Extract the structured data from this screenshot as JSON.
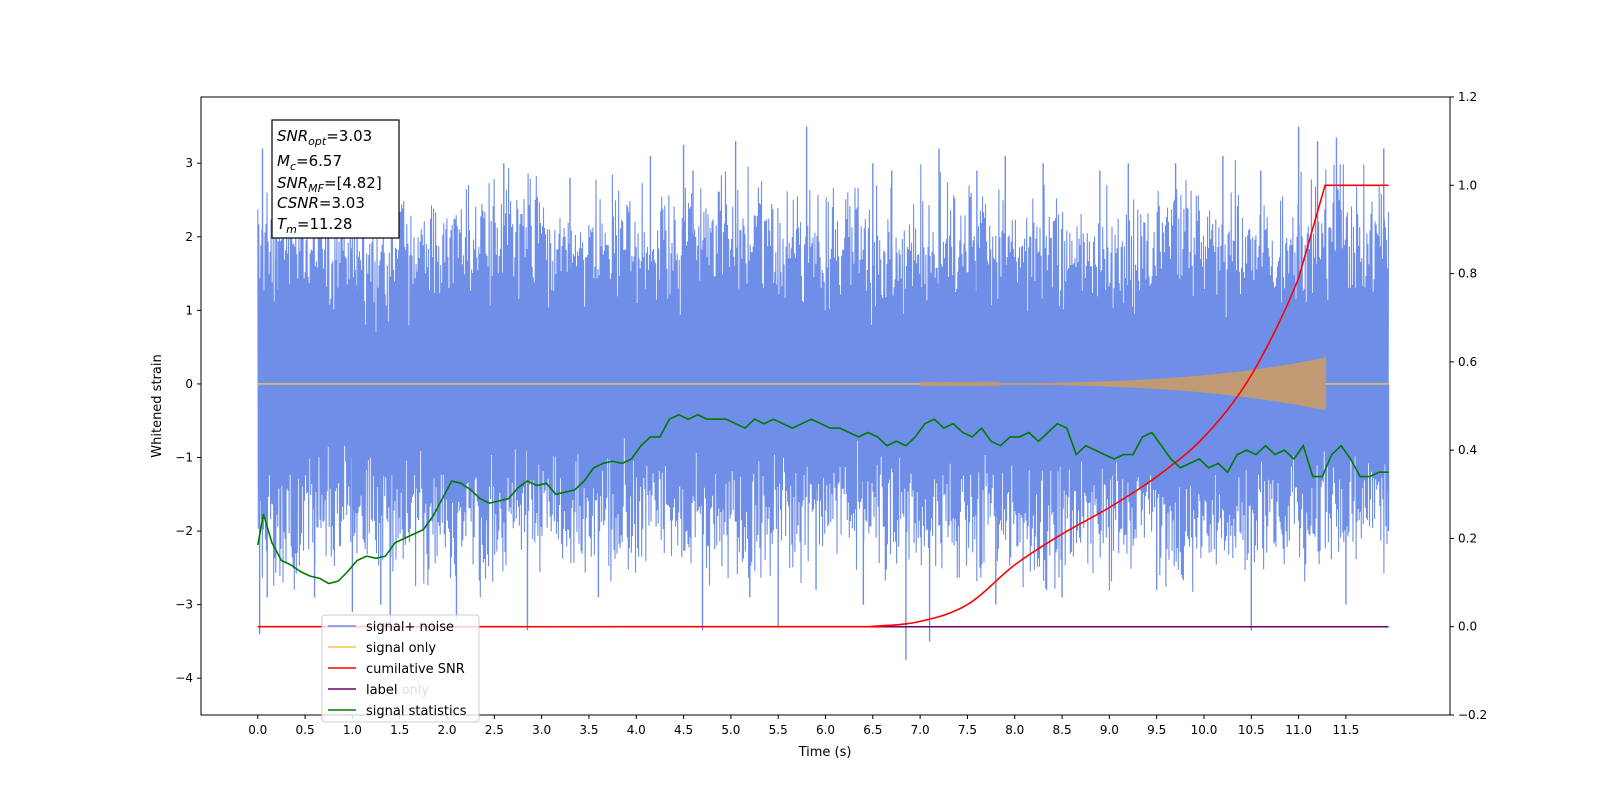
{
  "chart_data": {
    "type": "line",
    "xlabel": "Time (s)",
    "ylabel": "Whitened strain",
    "xlim": [
      -0.6,
      12.6
    ],
    "ylim": [
      -4.5,
      3.9
    ],
    "y2lim": [
      -0.2,
      1.2
    ],
    "xticks": [
      "0.0",
      "0.5",
      "1.0",
      "1.5",
      "2.0",
      "2.5",
      "3.0",
      "3.5",
      "4.0",
      "4.5",
      "5.0",
      "5.5",
      "6.0",
      "6.5",
      "7.0",
      "7.5",
      "8.0",
      "8.5",
      "9.0",
      "9.5",
      "10.0",
      "10.5",
      "11.0",
      "11.5"
    ],
    "yticks": [
      "−4",
      "−3",
      "−2",
      "−1",
      "0",
      "1",
      "2",
      "3"
    ],
    "y2ticks": [
      "−0.2",
      "0.0",
      "0.2",
      "0.4",
      "0.6",
      "0.8",
      "1.0",
      "1.2"
    ],
    "annotation": {
      "snr_opt": "=3.03",
      "mc": "=6.57",
      "snr_mf": "=[4.82]",
      "csnr": "=3.03",
      "tm": "=11.28"
    },
    "legend": [
      "signal+ noise",
      "signal only",
      "cumilative SNR",
      "label",
      "signal statistics"
    ],
    "ghost_legend_text": "label only",
    "colors": {
      "signal_noise": "#6f8ee8",
      "signal_only": "#ffc04d",
      "signal_envelope": "#c09a72",
      "cumulative_snr": "#ff0000",
      "label": "#6b006b",
      "signal_statistics": "#007a00"
    },
    "series": [
      {
        "name": "signal+ noise",
        "axis": "left",
        "envelope_low": [
          -2.6,
          -2.2,
          -2.3,
          -2.4,
          -2.5,
          -2.3,
          -2.2,
          -2.4,
          -2.3,
          -2.5,
          -2.4,
          -2.3,
          -2.2,
          -2.4,
          -2.3,
          -2.5,
          -2.6,
          -2.4,
          -2.3,
          -2.5,
          -2.4,
          -2.3,
          -2.4,
          -2.2
        ],
        "envelope_high": [
          2.5,
          2.3,
          2.2,
          2.4,
          2.5,
          2.6,
          2.3,
          2.4,
          2.5,
          2.7,
          2.6,
          2.4,
          2.5,
          2.3,
          2.6,
          2.5,
          2.4,
          2.3,
          2.4,
          2.6,
          2.5,
          2.4,
          2.7,
          2.6
        ],
        "spikes": [
          [
            0.02,
            -3.4
          ],
          [
            0.05,
            3.2
          ],
          [
            0.1,
            -2.9
          ],
          [
            0.2,
            2.3
          ],
          [
            0.6,
            -2.9
          ],
          [
            1.0,
            -3.1
          ],
          [
            1.05,
            2.8
          ],
          [
            1.3,
            -3.0
          ],
          [
            1.4,
            -3.3
          ],
          [
            2.1,
            -3.2
          ],
          [
            2.6,
            3.0
          ],
          [
            2.85,
            -3.35
          ],
          [
            3.3,
            2.8
          ],
          [
            3.6,
            -2.9
          ],
          [
            4.15,
            3.1
          ],
          [
            4.5,
            3.25
          ],
          [
            4.6,
            2.9
          ],
          [
            4.7,
            -3.35
          ],
          [
            5.05,
            3.3
          ],
          [
            5.2,
            -2.9
          ],
          [
            5.5,
            -3.3
          ],
          [
            5.8,
            3.5
          ],
          [
            5.9,
            -2.8
          ],
          [
            6.4,
            -3.0
          ],
          [
            6.5,
            3.0
          ],
          [
            6.7,
            2.9
          ],
          [
            6.85,
            -3.75
          ],
          [
            7.1,
            -3.5
          ],
          [
            7.2,
            3.2
          ],
          [
            7.6,
            2.9
          ],
          [
            7.8,
            -3.0
          ],
          [
            7.9,
            3.1
          ],
          [
            8.3,
            3.0
          ],
          [
            8.5,
            -2.9
          ],
          [
            8.9,
            2.9
          ],
          [
            9.2,
            3.0
          ],
          [
            9.5,
            -2.8
          ],
          [
            9.7,
            3.0
          ],
          [
            10.2,
            3.1
          ],
          [
            10.5,
            -3.35
          ],
          [
            10.6,
            2.9
          ],
          [
            11.0,
            3.5
          ],
          [
            11.2,
            3.3
          ],
          [
            11.4,
            3.35
          ],
          [
            11.5,
            -3.0
          ],
          [
            11.9,
            3.2
          ],
          [
            11.95,
            -2.0
          ]
        ]
      },
      {
        "name": "signal only",
        "axis": "left",
        "chirp_start": 7.0,
        "chirp_end": 11.28,
        "peak_amplitude": 0.35
      },
      {
        "name": "cumilative SNR",
        "axis": "right",
        "x": [
          0.0,
          6.0,
          6.5,
          7.0,
          7.5,
          8.0,
          8.5,
          9.0,
          9.5,
          10.0,
          10.5,
          11.0,
          11.28,
          11.95
        ],
        "y": [
          0.0,
          0.0,
          0.001,
          0.012,
          0.05,
          0.14,
          0.21,
          0.27,
          0.34,
          0.43,
          0.57,
          0.79,
          1.0,
          1.0
        ]
      },
      {
        "name": "label",
        "axis": "right",
        "x": [
          0.0,
          11.95
        ],
        "y": [
          0.0,
          0.0
        ]
      },
      {
        "name": "signal statistics",
        "axis": "right",
        "x": [
          0.0,
          0.06,
          0.15,
          0.25,
          0.35,
          0.45,
          0.55,
          0.65,
          0.75,
          0.85,
          0.95,
          1.05,
          1.15,
          1.25,
          1.35,
          1.45,
          1.55,
          1.65,
          1.75,
          1.85,
          1.95,
          2.05,
          2.15,
          2.25,
          2.35,
          2.45,
          2.55,
          2.65,
          2.75,
          2.85,
          2.95,
          3.05,
          3.15,
          3.25,
          3.35,
          3.45,
          3.55,
          3.65,
          3.75,
          3.85,
          3.95,
          4.05,
          4.15,
          4.25,
          4.35,
          4.45,
          4.55,
          4.65,
          4.75,
          4.85,
          4.95,
          5.05,
          5.15,
          5.25,
          5.35,
          5.45,
          5.55,
          5.65,
          5.75,
          5.85,
          5.95,
          6.05,
          6.15,
          6.25,
          6.35,
          6.45,
          6.55,
          6.65,
          6.75,
          6.85,
          6.95,
          7.05,
          7.15,
          7.25,
          7.35,
          7.45,
          7.55,
          7.65,
          7.75,
          7.85,
          7.95,
          8.05,
          8.15,
          8.25,
          8.35,
          8.45,
          8.55,
          8.65,
          8.75,
          8.85,
          8.95,
          9.05,
          9.15,
          9.25,
          9.35,
          9.45,
          9.55,
          9.65,
          9.75,
          9.85,
          9.95,
          10.05,
          10.15,
          10.25,
          10.35,
          10.45,
          10.55,
          10.65,
          10.75,
          10.85,
          10.95,
          11.05,
          11.15,
          11.25,
          11.35,
          11.45,
          11.55,
          11.65,
          11.75,
          11.85,
          11.95
        ],
        "y": [
          0.185,
          0.255,
          0.19,
          0.15,
          0.14,
          0.125,
          0.115,
          0.11,
          0.098,
          0.103,
          0.125,
          0.15,
          0.16,
          0.155,
          0.16,
          0.19,
          0.2,
          0.21,
          0.22,
          0.25,
          0.29,
          0.33,
          0.325,
          0.31,
          0.29,
          0.28,
          0.285,
          0.29,
          0.315,
          0.33,
          0.32,
          0.325,
          0.3,
          0.305,
          0.31,
          0.33,
          0.36,
          0.37,
          0.375,
          0.37,
          0.38,
          0.41,
          0.43,
          0.43,
          0.47,
          0.48,
          0.47,
          0.48,
          0.47,
          0.47,
          0.47,
          0.46,
          0.45,
          0.47,
          0.46,
          0.47,
          0.46,
          0.45,
          0.46,
          0.47,
          0.46,
          0.45,
          0.45,
          0.44,
          0.43,
          0.44,
          0.43,
          0.41,
          0.42,
          0.41,
          0.43,
          0.46,
          0.47,
          0.45,
          0.46,
          0.44,
          0.43,
          0.45,
          0.42,
          0.41,
          0.43,
          0.43,
          0.44,
          0.42,
          0.44,
          0.46,
          0.45,
          0.39,
          0.41,
          0.4,
          0.39,
          0.38,
          0.39,
          0.39,
          0.43,
          0.44,
          0.41,
          0.38,
          0.36,
          0.37,
          0.38,
          0.36,
          0.37,
          0.35,
          0.39,
          0.4,
          0.39,
          0.41,
          0.39,
          0.4,
          0.38,
          0.41,
          0.34,
          0.34,
          0.39,
          0.41,
          0.38,
          0.34,
          0.34,
          0.35,
          0.35
        ]
      }
    ]
  }
}
